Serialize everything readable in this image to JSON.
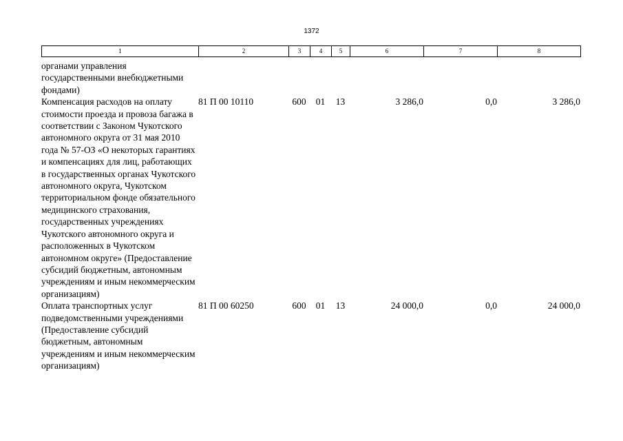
{
  "page_number": "1372",
  "header": [
    "1",
    "2",
    "3",
    "4",
    "5",
    "6",
    "7",
    "8"
  ],
  "rows": [
    {
      "name": "органами управления государственными внебюджетными фондами)",
      "code": "",
      "c3": "",
      "c4": "",
      "c5": "",
      "v6": "",
      "v7": "",
      "v8": ""
    },
    {
      "name": "Компенсация расходов на оплату стоимости проезда и провоза багажа в соответствии с Законом Чукотского автономного округа от 31 мая 2010 года № 57-ОЗ «О некоторых гарантиях и компенсациях для лиц, работающих в государственных органах Чукотского автономного округа, Чукотском территориальном фонде обязательного медицинского страхования, государственных учреждениях Чукотского автономного округа и расположенных в Чукотском автономном округе» (Предоставление субсидий бюджетным, автономным учреждениям и иным некоммерческим организациям)",
      "code": "81 П 00 10110",
      "c3": "600",
      "c4": "01",
      "c5": "13",
      "v6": "3 286,0",
      "v7": "0,0",
      "v8": "3 286,0"
    },
    {
      "name": "Оплата транспортных услуг подведомственными учреждениями (Предоставление субсидий бюджетным, автономным учреждениям и иным некоммерческим организациям)",
      "code": "81 П 00 60250",
      "c3": "600",
      "c4": "01",
      "c5": "13",
      "v6": "24 000,0",
      "v7": "0,0",
      "v8": "24 000,0"
    }
  ]
}
